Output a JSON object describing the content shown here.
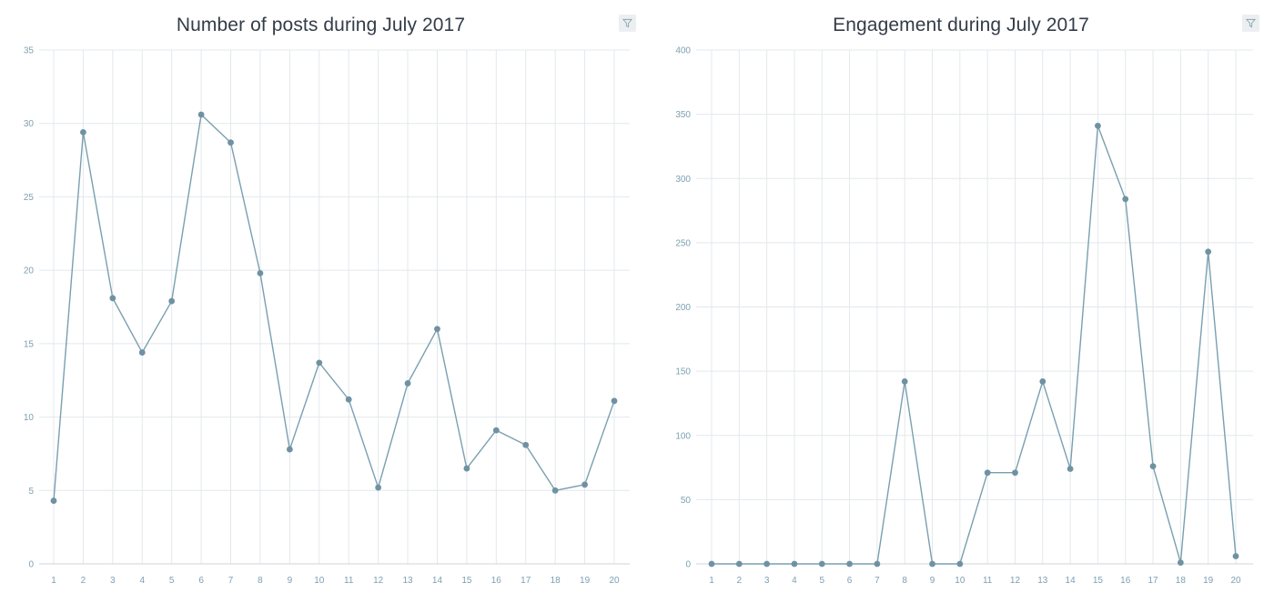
{
  "colors": {
    "line": "#7a9fb0",
    "point": "#6f92a3",
    "grid": "#e3e8ec",
    "axis": "#cfd6db",
    "tick_text": "#7d9fb2",
    "title": "#333c48",
    "filter_bg": "#eceff1",
    "filter_icon": "#8aa4b3"
  },
  "icons": {
    "filter": "filter-icon"
  },
  "chart_data": [
    {
      "type": "line",
      "title": "Number of posts during July 2017",
      "xlabel": "",
      "ylabel": "",
      "x": [
        "1",
        "2",
        "3",
        "4",
        "5",
        "6",
        "7",
        "8",
        "9",
        "10",
        "11",
        "12",
        "13",
        "14",
        "15",
        "16",
        "17",
        "18",
        "19",
        "20"
      ],
      "series": [
        {
          "values": [
            4.3,
            29.4,
            18.1,
            14.4,
            17.9,
            30.6,
            28.7,
            19.8,
            7.8,
            13.7,
            11.2,
            5.2,
            12.3,
            16.0,
            6.5,
            9.1,
            8.1,
            5.0,
            5.4,
            11.1
          ]
        }
      ],
      "ylim": [
        0,
        35
      ],
      "yticks": [
        "0",
        "5",
        "10",
        "15",
        "20",
        "25",
        "30",
        "35"
      ],
      "grid": true
    },
    {
      "type": "line",
      "title": "Engagement during July 2017",
      "xlabel": "",
      "ylabel": "",
      "x": [
        "1",
        "2",
        "3",
        "4",
        "5",
        "6",
        "7",
        "8",
        "9",
        "10",
        "11",
        "12",
        "13",
        "14",
        "15",
        "16",
        "17",
        "18",
        "19",
        "20"
      ],
      "series": [
        {
          "values": [
            0,
            0,
            0,
            0,
            0,
            0,
            0,
            142,
            0,
            0,
            71,
            71,
            142,
            74,
            341,
            284,
            76,
            1,
            243,
            6
          ]
        }
      ],
      "ylim": [
        0,
        400
      ],
      "yticks": [
        "0",
        "50",
        "100",
        "150",
        "200",
        "250",
        "300",
        "350",
        "400"
      ],
      "grid": true
    }
  ]
}
